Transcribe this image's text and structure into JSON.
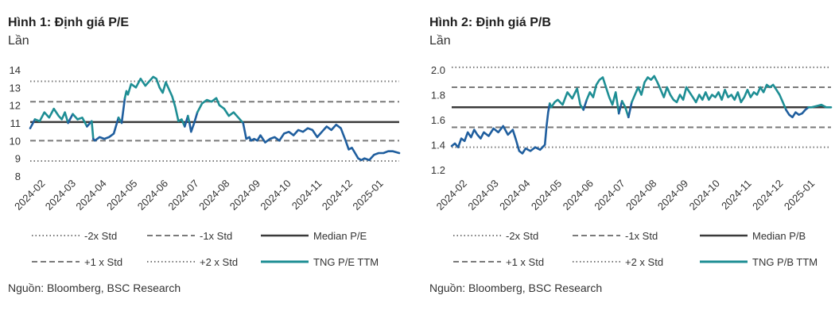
{
  "colors": {
    "mean": "#3a3a3a",
    "band": "#7a7a7a",
    "teal": "#1e8e94",
    "blue": "#1f5e9e"
  },
  "charts": [
    {
      "title": "Hình 1: Định giá P/E",
      "unit": "Lần",
      "source": "Nguồn: Bloomberg, BSC Research",
      "legend": {
        "m2": "-2x Std",
        "m1": "-1x Std",
        "median": "Median P/E",
        "p1": "+1 x Std",
        "p2": "+2 x Std",
        "series": "TNG P/E TTM"
      }
    },
    {
      "title": "Hình 2: Định giá P/B",
      "unit": "Lần",
      "source": "Nguồn: Bloomberg, BSC Research",
      "legend": {
        "m2": "-2x Std",
        "m1": "-1x Std",
        "median": "Median P/B",
        "p1": "+1 x Std",
        "p2": "+2 x Std",
        "series": "TNG P/B TTM"
      }
    }
  ],
  "chart_data": [
    {
      "type": "line",
      "title": "Hình 1: Định giá P/E",
      "ylabel": "Lần",
      "ylim": [
        8,
        14
      ],
      "yticks": [
        14,
        13,
        12,
        11,
        10,
        9,
        8
      ],
      "xticks": [
        "2024-02",
        "2024-03",
        "2024-04",
        "2024-05",
        "2024-06",
        "2024-07",
        "2024-08",
        "2024-09",
        "2024-10",
        "2024-11",
        "2024-12",
        "2025-01"
      ],
      "reference_lines": {
        "minus_2_std": 8.85,
        "minus_1_std": 10.0,
        "median": 11.05,
        "plus_1_std": 12.2,
        "plus_2_std": 13.35
      },
      "series": [
        {
          "name": "TNG P/E TTM",
          "x": [
            0,
            0.15,
            0.3,
            0.45,
            0.6,
            0.75,
            0.9,
            1.0,
            1.1,
            1.2,
            1.35,
            1.5,
            1.65,
            1.8,
            1.95,
            2.0,
            2.05,
            2.2,
            2.35,
            2.5,
            2.65,
            2.8,
            2.9,
            3.0,
            3.05,
            3.1,
            3.2,
            3.35,
            3.5,
            3.65,
            3.8,
            3.9,
            4.0,
            4.1,
            4.2,
            4.3,
            4.4,
            4.5,
            4.6,
            4.7,
            4.8,
            4.9,
            5.0,
            5.05,
            5.1,
            5.2,
            5.3,
            5.45,
            5.6,
            5.75,
            5.9,
            6.0,
            6.15,
            6.3,
            6.45,
            6.6,
            6.75,
            6.85,
            6.95,
            7.0,
            7.1,
            7.2,
            7.3,
            7.45,
            7.6,
            7.75,
            7.9,
            8.05,
            8.2,
            8.35,
            8.5,
            8.65,
            8.8,
            8.95,
            9.1,
            9.25,
            9.4,
            9.55,
            9.7,
            9.85,
            10.0,
            10.1,
            10.2,
            10.3,
            10.4,
            10.5,
            10.6,
            10.75,
            10.9,
            11.05,
            11.2,
            11.35,
            11.5,
            11.7
          ],
          "values": [
            10.7,
            11.2,
            11.1,
            11.6,
            11.3,
            11.8,
            11.4,
            11.2,
            11.6,
            11.0,
            11.5,
            11.2,
            11.3,
            10.8,
            11.1,
            10.1,
            10.0,
            10.2,
            10.1,
            10.2,
            10.4,
            11.3,
            11.0,
            12.4,
            12.8,
            12.6,
            13.2,
            13.0,
            13.5,
            13.1,
            13.4,
            13.6,
            13.5,
            13.0,
            12.7,
            13.3,
            12.9,
            12.5,
            11.9,
            11.1,
            11.2,
            10.8,
            11.4,
            11.0,
            10.5,
            11.0,
            11.6,
            12.1,
            12.3,
            12.2,
            12.4,
            12.0,
            11.8,
            11.4,
            11.6,
            11.3,
            11.0,
            10.1,
            10.2,
            10.0,
            10.1,
            10.0,
            10.3,
            9.9,
            10.1,
            10.2,
            10.0,
            10.4,
            10.5,
            10.3,
            10.6,
            10.5,
            10.7,
            10.6,
            10.2,
            10.5,
            10.8,
            10.6,
            10.9,
            10.7,
            10.0,
            9.5,
            9.6,
            9.3,
            9.0,
            8.9,
            9.0,
            8.9,
            9.2,
            9.3,
            9.3,
            9.4,
            9.4,
            9.3
          ]
        }
      ]
    },
    {
      "type": "line",
      "title": "Hình 2: Định giá P/B",
      "ylabel": "Lần",
      "ylim": [
        1.2,
        2.0
      ],
      "yticks": [
        2.0,
        1.8,
        1.6,
        1.4,
        1.2
      ],
      "xticks": [
        "2024-02",
        "2024-03",
        "2024-04",
        "2024-05",
        "2024-06",
        "2024-07",
        "2024-08",
        "2024-09",
        "2024-10",
        "2024-11",
        "2024-12",
        "2025-01"
      ],
      "reference_lines": {
        "minus_2_std": 1.38,
        "minus_1_std": 1.54,
        "median": 1.7,
        "plus_1_std": 1.86,
        "plus_2_std": 2.02
      },
      "series": [
        {
          "name": "TNG P/B TTM",
          "x": [
            0,
            0.1,
            0.2,
            0.3,
            0.4,
            0.5,
            0.6,
            0.7,
            0.8,
            0.9,
            1.0,
            1.15,
            1.3,
            1.45,
            1.6,
            1.75,
            1.9,
            2.0,
            2.1,
            2.2,
            2.3,
            2.45,
            2.6,
            2.75,
            2.9,
            2.95,
            3.0,
            3.05,
            3.1,
            3.2,
            3.3,
            3.45,
            3.6,
            3.75,
            3.9,
            4.0,
            4.1,
            4.2,
            4.3,
            4.4,
            4.5,
            4.6,
            4.7,
            4.8,
            4.9,
            5.0,
            5.1,
            5.2,
            5.3,
            5.4,
            5.5,
            5.6,
            5.7,
            5.8,
            5.9,
            6.0,
            6.1,
            6.2,
            6.3,
            6.4,
            6.5,
            6.6,
            6.7,
            6.8,
            6.9,
            7.0,
            7.1,
            7.2,
            7.3,
            7.4,
            7.5,
            7.6,
            7.7,
            7.8,
            7.9,
            8.0,
            8.1,
            8.2,
            8.3,
            8.4,
            8.5,
            8.6,
            8.7,
            8.8,
            8.9,
            9.0,
            9.1,
            9.2,
            9.3,
            9.4,
            9.5,
            9.6,
            9.7,
            9.8,
            9.9,
            10.0,
            10.1,
            10.2,
            10.3,
            10.4,
            10.5,
            10.6,
            10.7,
            10.8,
            10.9,
            11.0,
            11.1,
            11.2,
            11.35,
            11.5,
            11.65,
            11.8
          ],
          "values": [
            1.39,
            1.41,
            1.38,
            1.45,
            1.43,
            1.5,
            1.46,
            1.52,
            1.48,
            1.45,
            1.5,
            1.47,
            1.53,
            1.5,
            1.55,
            1.48,
            1.52,
            1.44,
            1.35,
            1.33,
            1.37,
            1.35,
            1.38,
            1.36,
            1.4,
            1.55,
            1.66,
            1.73,
            1.7,
            1.74,
            1.76,
            1.72,
            1.82,
            1.77,
            1.85,
            1.72,
            1.68,
            1.76,
            1.82,
            1.78,
            1.88,
            1.92,
            1.94,
            1.86,
            1.78,
            1.72,
            1.82,
            1.65,
            1.75,
            1.7,
            1.62,
            1.74,
            1.8,
            1.86,
            1.8,
            1.9,
            1.94,
            1.92,
            1.95,
            1.9,
            1.84,
            1.78,
            1.86,
            1.8,
            1.76,
            1.74,
            1.8,
            1.76,
            1.86,
            1.82,
            1.78,
            1.74,
            1.8,
            1.76,
            1.82,
            1.76,
            1.8,
            1.78,
            1.82,
            1.76,
            1.84,
            1.78,
            1.8,
            1.76,
            1.82,
            1.74,
            1.78,
            1.84,
            1.78,
            1.82,
            1.8,
            1.86,
            1.82,
            1.88,
            1.86,
            1.88,
            1.84,
            1.8,
            1.74,
            1.68,
            1.64,
            1.62,
            1.66,
            1.64,
            1.65,
            1.68,
            1.7,
            1.7,
            1.71,
            1.72,
            1.7,
            1.7
          ]
        }
      ]
    }
  ]
}
